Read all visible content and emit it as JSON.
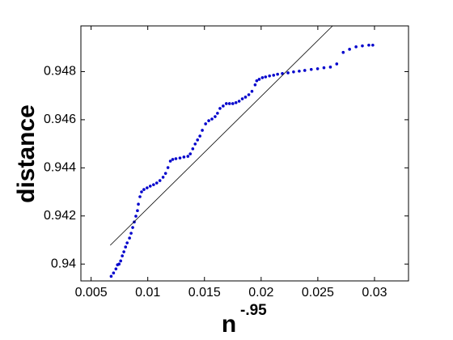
{
  "chart_data": {
    "type": "scatter",
    "xlabel": "n",
    "xlabel_superscript": "-.95",
    "ylabel": "distance",
    "xlim": [
      0.0041,
      0.033
    ],
    "ylim": [
      0.9393,
      0.9499
    ],
    "xticks": [
      0.005,
      0.01,
      0.015,
      0.02,
      0.025,
      0.03
    ],
    "yticks": [
      0.94,
      0.942,
      0.944,
      0.946,
      0.948
    ],
    "series": [
      {
        "type": "scatter",
        "color": "#0000cc",
        "x": [
          0.00677,
          0.00698,
          0.00719,
          0.00733,
          0.00747,
          0.00761,
          0.00775,
          0.00789,
          0.00804,
          0.00818,
          0.00839,
          0.00853,
          0.00867,
          0.00881,
          0.00895,
          0.00909,
          0.00917,
          0.00931,
          0.00945,
          0.00966,
          0.00994,
          0.01022,
          0.01051,
          0.01079,
          0.01107,
          0.01135,
          0.01157,
          0.01178,
          0.01199,
          0.0122,
          0.01248,
          0.01284,
          0.01319,
          0.01354,
          0.01375,
          0.01397,
          0.01418,
          0.01439,
          0.0146,
          0.01481,
          0.0151,
          0.01538,
          0.01566,
          0.01594,
          0.01615,
          0.01637,
          0.01665,
          0.01693,
          0.01721,
          0.0175,
          0.01778,
          0.01806,
          0.01834,
          0.01862,
          0.01891,
          0.01919,
          0.01947,
          0.01961,
          0.01983,
          0.02011,
          0.02039,
          0.02074,
          0.0211,
          0.02145,
          0.02187,
          0.02237,
          0.02286,
          0.02336,
          0.02385,
          0.02442,
          0.02498,
          0.02554,
          0.02611,
          0.02667,
          0.02724,
          0.0278,
          0.02837,
          0.02893,
          0.0295,
          0.02985
        ],
        "y": [
          0.93949,
          0.93963,
          0.9398,
          0.93997,
          0.94,
          0.94013,
          0.94034,
          0.94051,
          0.94071,
          0.94088,
          0.94108,
          0.94128,
          0.94152,
          0.94175,
          0.94199,
          0.94222,
          0.94249,
          0.9428,
          0.943,
          0.9431,
          0.94317,
          0.94324,
          0.9433,
          0.94337,
          0.94347,
          0.94361,
          0.94377,
          0.94401,
          0.94428,
          0.94435,
          0.94438,
          0.94441,
          0.94445,
          0.94448,
          0.94458,
          0.94479,
          0.94499,
          0.94516,
          0.94532,
          0.94556,
          0.94583,
          0.94596,
          0.94603,
          0.94613,
          0.94627,
          0.94647,
          0.94657,
          0.94667,
          0.94667,
          0.94667,
          0.94671,
          0.94677,
          0.94687,
          0.94694,
          0.94704,
          0.94718,
          0.94745,
          0.94762,
          0.94768,
          0.94775,
          0.94778,
          0.94782,
          0.94785,
          0.94789,
          0.94792,
          0.94795,
          0.94799,
          0.94802,
          0.94805,
          0.94809,
          0.94812,
          0.94816,
          0.94819,
          0.94832,
          0.9488,
          0.94893,
          0.94903,
          0.94907,
          0.9491,
          0.9491
        ]
      },
      {
        "type": "line",
        "color": "#000000",
        "x": [
          0.00669,
          0.0263
        ],
        "y": [
          0.94078,
          0.9499
        ]
      }
    ]
  }
}
